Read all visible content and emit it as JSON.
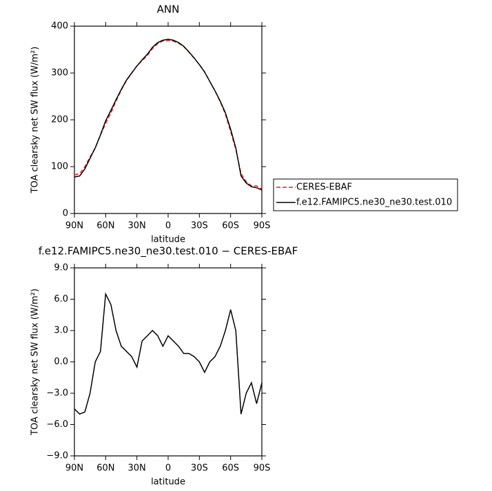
{
  "chart_data": [
    {
      "type": "line",
      "title": "ANN",
      "y_label": "TOA clearsky net SW flux (W/m²)",
      "x_label": "latitude",
      "x": [
        90,
        85,
        80,
        75,
        70,
        65,
        60,
        55,
        50,
        45,
        40,
        35,
        30,
        25,
        20,
        15,
        10,
        5,
        0,
        -5,
        -10,
        -15,
        -20,
        -25,
        -30,
        -35,
        -40,
        -45,
        -50,
        -55,
        -60,
        -65,
        -70,
        -75,
        -80,
        -85,
        -90
      ],
      "series": [
        {
          "name": "CERES-EBAF",
          "color": "#e0201b",
          "style": "dashed",
          "values": [
            82.5,
            85,
            99.8,
            121,
            140,
            167,
            192.5,
            214.5,
            240,
            263.5,
            284,
            299.5,
            315.5,
            326,
            337.5,
            352,
            362.5,
            368.5,
            369.5,
            368,
            363.5,
            356.2,
            344.2,
            331.5,
            318,
            303,
            282,
            261.5,
            238.5,
            212,
            175,
            137,
            85,
            68,
            59,
            59,
            52
          ]
        },
        {
          "name": "f.e12.FAMIPC5.ne30_ne30.test.010",
          "color": "#000000",
          "style": "solid",
          "values": [
            78,
            80,
            95,
            118,
            140,
            168,
            198,
            220,
            243,
            265,
            285,
            300,
            315,
            328,
            340,
            355,
            365,
            370,
            372,
            370,
            365,
            357,
            345,
            332,
            318,
            302,
            282,
            262,
            240,
            215,
            180,
            140,
            80,
            65,
            57,
            55,
            50
          ]
        }
      ],
      "xlim": [
        90,
        -90
      ],
      "xticks": [
        {
          "value": 90,
          "label": "90N"
        },
        {
          "value": 60,
          "label": "60N"
        },
        {
          "value": 30,
          "label": "30N"
        },
        0,
        {
          "value": -30,
          "label": "30S"
        },
        {
          "value": -60,
          "label": "60S"
        },
        {
          "value": -90,
          "label": "90S"
        }
      ],
      "ylim": [
        0,
        400
      ],
      "yticks": [
        0,
        100,
        200,
        300,
        400
      ],
      "legend": "right"
    },
    {
      "type": "line",
      "title": "f.e12.FAMIPC5.ne30_ne30.test.010 − CERES-EBAF",
      "y_label": "TOA clearsky net SW flux (W/m²)",
      "x_label": "latitude",
      "x": [
        90,
        85,
        80,
        75,
        70,
        65,
        60,
        55,
        50,
        45,
        40,
        35,
        30,
        25,
        20,
        15,
        10,
        5,
        0,
        -5,
        -10,
        -15,
        -20,
        -25,
        -30,
        -35,
        -40,
        -45,
        -50,
        -55,
        -60,
        -65,
        -70,
        -75,
        -80,
        -85,
        -90
      ],
      "color": "#000000",
      "values": [
        -4.5,
        -5,
        -4.8,
        -3,
        0,
        1,
        6.5,
        5.5,
        3,
        1.5,
        1,
        0.5,
        -0.5,
        2,
        2.5,
        3,
        2.5,
        1.5,
        2.5,
        2,
        1.5,
        0.8,
        0.8,
        0.5,
        0,
        -1,
        0,
        0.5,
        1.5,
        3,
        5,
        3,
        -5,
        -3,
        -2,
        -4,
        -2
      ],
      "xlim": [
        90,
        -90
      ],
      "xticks": [
        {
          "value": 90,
          "label": "90N"
        },
        {
          "value": 60,
          "label": "60N"
        },
        {
          "value": 30,
          "label": "30N"
        },
        0,
        {
          "value": -30,
          "label": "30S"
        },
        {
          "value": -60,
          "label": "60S"
        },
        {
          "value": -90,
          "label": "90S"
        }
      ],
      "ylim": [
        -9,
        9
      ],
      "yticks": [
        {
          "value": -9,
          "label": "−9.0"
        },
        {
          "value": -6,
          "label": "−6.0"
        },
        {
          "value": -3,
          "label": "−3.0"
        },
        {
          "value": 0,
          "label": "0.0"
        },
        {
          "value": 3,
          "label": "3.0"
        },
        {
          "value": 6,
          "label": "6.0"
        },
        {
          "value": 9,
          "label": "9.0"
        }
      ]
    }
  ]
}
